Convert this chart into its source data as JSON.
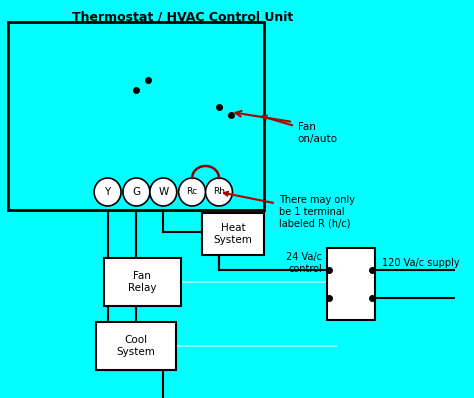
{
  "title": "Thermostat / HVAC Control Unit",
  "bg_color": "#00FFFF",
  "line_color": "#000000",
  "red_color": "#AA0000",
  "brown_color": "#8B0000",
  "cyan_color": "#00FFFF",
  "white_color": "#FFFFFF",
  "text_color": "#000000",
  "label_fan": "Fan\non/auto",
  "label_terminal_note": "There may only\nbe 1 terminal\nlabeled R (h/c)",
  "label_24v": "24 Va/c\ncontrol",
  "label_120v": "120 Va/c supply",
  "label_heat": "Heat\nSystem",
  "label_fan_relay": "Fan\nRelay",
  "label_cool": "Cool\nSystem",
  "terminals": [
    "Y",
    "G",
    "W",
    "Rc",
    "Rh"
  ]
}
